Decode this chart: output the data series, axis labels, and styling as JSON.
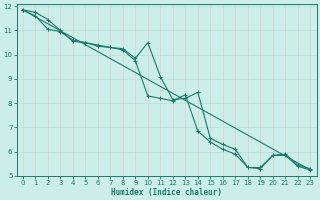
{
  "xlabel": "Humidex (Indice chaleur)",
  "bg_color": "#cceee8",
  "line_color": "#1a7a6e",
  "grid_major_color": "#ffffff",
  "grid_minor_color": "#e8f8f5",
  "xlim": [
    -0.5,
    23.5
  ],
  "ylim": [
    5,
    12.1
  ],
  "yticks": [
    5,
    6,
    7,
    8,
    9,
    10,
    11,
    12
  ],
  "xticks": [
    0,
    1,
    2,
    3,
    4,
    5,
    6,
    7,
    8,
    9,
    10,
    11,
    12,
    13,
    14,
    15,
    16,
    17,
    18,
    19,
    20,
    21,
    22,
    23
  ],
  "line1_x": [
    0,
    1,
    2,
    3,
    4,
    5,
    6,
    7,
    8,
    9,
    10,
    11,
    12,
    13,
    14,
    15,
    16,
    17,
    18,
    19,
    20,
    21,
    22,
    23
  ],
  "line1_y": [
    11.85,
    11.75,
    11.45,
    11.0,
    10.55,
    10.5,
    10.4,
    10.3,
    10.25,
    9.85,
    10.5,
    9.1,
    8.15,
    8.2,
    8.45,
    6.55,
    6.3,
    6.1,
    5.35,
    5.35,
    5.85,
    5.9,
    5.45,
    5.3
  ],
  "line2_x": [
    0,
    1,
    2,
    3,
    4,
    5,
    6,
    7,
    8,
    9,
    10,
    11,
    12,
    13,
    14,
    15,
    16,
    17,
    18,
    19,
    20,
    21,
    22,
    23
  ],
  "line2_y": [
    11.85,
    11.6,
    11.05,
    10.95,
    10.6,
    10.5,
    10.35,
    10.3,
    10.2,
    9.75,
    8.3,
    8.2,
    8.1,
    8.35,
    6.85,
    6.4,
    6.1,
    5.9,
    5.35,
    5.3,
    5.85,
    5.85,
    5.4,
    5.25
  ],
  "line3_x": [
    0,
    23
  ],
  "line3_y": [
    11.85,
    5.25
  ]
}
